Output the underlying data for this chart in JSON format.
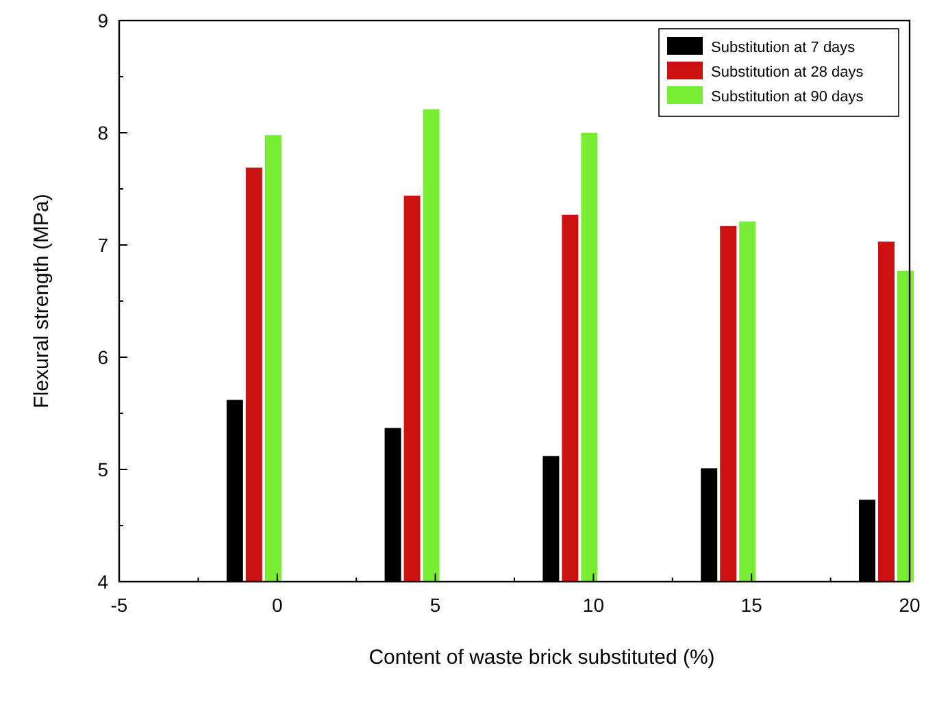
{
  "chart_data": {
    "type": "bar",
    "xlabel": "Content of waste brick substituted (%)",
    "ylabel": "Flexural strength (MPa)",
    "x": [
      0,
      5,
      10,
      15,
      20
    ],
    "xlim": [
      -5,
      20
    ],
    "xticks": [
      -5,
      0,
      5,
      10,
      15,
      20
    ],
    "ylim": [
      4,
      9
    ],
    "yticks": [
      4,
      5,
      6,
      7,
      8,
      9
    ],
    "grid": false,
    "legend": "top right",
    "series": [
      {
        "name": "Substitution at 7 days",
        "color": "#000000",
        "values": [
          5.62,
          5.37,
          5.12,
          5.01,
          4.73
        ]
      },
      {
        "name": "Substitution at 28 days",
        "color": "#cc1111",
        "values": [
          7.69,
          7.44,
          7.27,
          7.17,
          7.03
        ]
      },
      {
        "name": "Substitution at 90 days",
        "color": "#77ee33",
        "values": [
          7.98,
          8.21,
          8.0,
          7.21,
          6.77
        ]
      }
    ]
  }
}
